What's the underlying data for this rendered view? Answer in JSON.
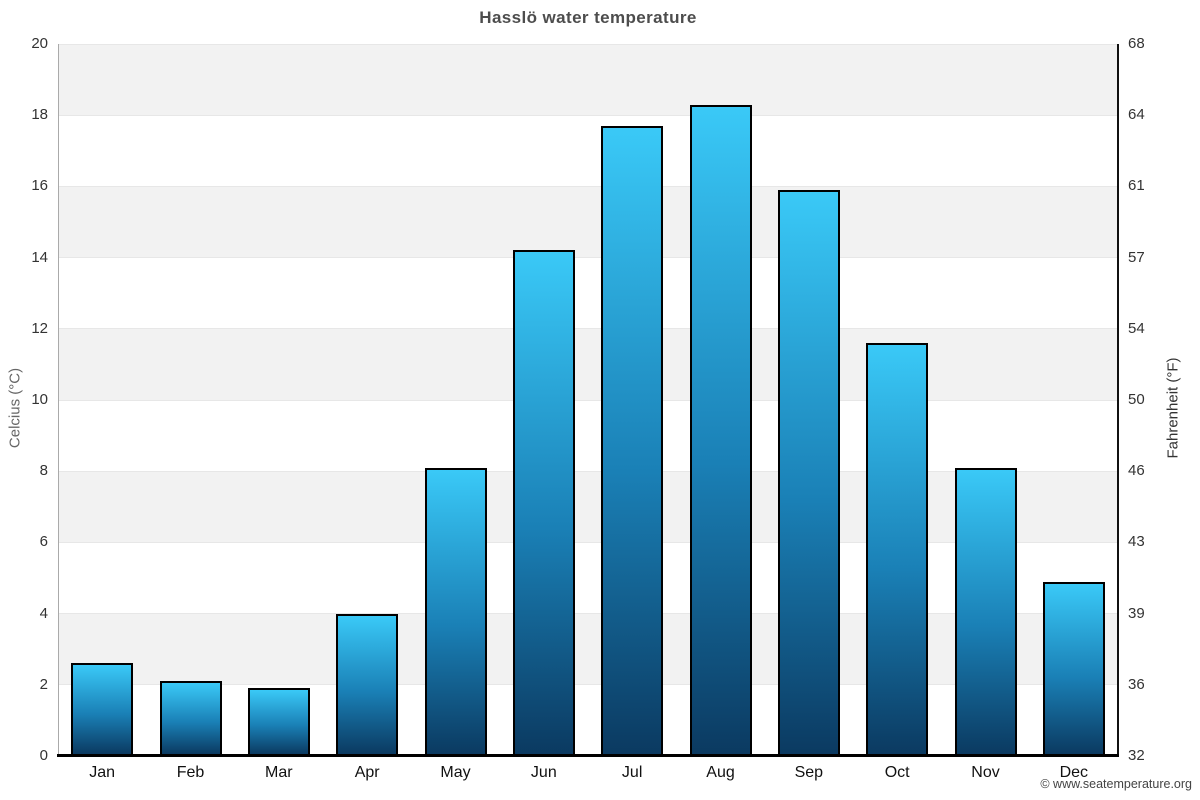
{
  "title": "Hasslö water temperature",
  "copyright": "© www.seatemperature.org",
  "chart_data": {
    "type": "bar",
    "title": "Hasslö water temperature",
    "categories": [
      "Jan",
      "Feb",
      "Mar",
      "Apr",
      "May",
      "Jun",
      "Jul",
      "Aug",
      "Sep",
      "Oct",
      "Nov",
      "Dec"
    ],
    "values": [
      2.6,
      2.1,
      1.9,
      4.0,
      8.1,
      14.2,
      17.7,
      18.3,
      15.9,
      11.6,
      8.1,
      4.9
    ],
    "unit": "°C",
    "ylabel_left": "Celcius (°C)",
    "ylabel_right": "Fahrenheit (°F)",
    "yticks_celsius": [
      0,
      2,
      4,
      6,
      8,
      10,
      12,
      14,
      16,
      18,
      20
    ],
    "yticks_fahrenheit": [
      32,
      36,
      39,
      43,
      46,
      50,
      54,
      57,
      61,
      64,
      68
    ],
    "ylim": [
      0,
      20
    ],
    "grid": "horizontal bands every 2°C, alternating shading",
    "legend": "none",
    "colors": {
      "bar_gradient_top": "#3ac9f7",
      "bar_gradient_bottom": "#0b3a61",
      "bar_border": "#000000",
      "band_shade": "#f2f2f2",
      "grid_line": "#e7e7e7",
      "axis_line_left": "#aaaaaa",
      "axis_line_right": "#111111",
      "baseline": "#000000",
      "title_color": "#4d4d4d"
    }
  }
}
